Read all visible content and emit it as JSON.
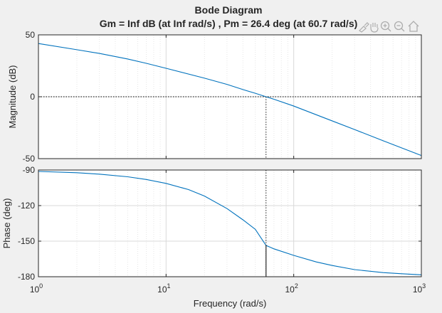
{
  "chart_data": {
    "type": "line",
    "title": "Bode Diagram",
    "subtitle": "Gm = Inf dB (at Inf rad/s) ,  Pm = 26.4 deg (at 60.7 rad/s)",
    "xlabel": "Frequency  (rad/s)",
    "xscale": "log",
    "xlim": [
      1,
      1000
    ],
    "x_ticks": [
      {
        "base": "10",
        "exp": "0"
      },
      {
        "base": "10",
        "exp": "1"
      },
      {
        "base": "10",
        "exp": "2"
      },
      {
        "base": "10",
        "exp": "3"
      }
    ],
    "grid": true,
    "colors": {
      "series": "#0072bd",
      "reference": "#000000",
      "marker": "#262626"
    },
    "panels": [
      {
        "name": "magnitude",
        "ylabel": "Magnitude (dB)",
        "ylim": [
          -50,
          50
        ],
        "yticks": [
          -50,
          0,
          50
        ],
        "reference_line": 0,
        "x": [
          1,
          2,
          3,
          5,
          7,
          10,
          20,
          30,
          40,
          50,
          60.7,
          70,
          100,
          200,
          300,
          500,
          700,
          1000
        ],
        "y": [
          43,
          38,
          35,
          30.5,
          27,
          23,
          15,
          10,
          5.8,
          2.8,
          0,
          -2,
          -7.5,
          -19.5,
          -26.5,
          -35.5,
          -41.3,
          -47.5
        ]
      },
      {
        "name": "phase",
        "ylabel": "Phase (deg)",
        "ylim": [
          -180,
          -90
        ],
        "yticks": [
          -180,
          -150,
          -120,
          -90
        ],
        "reference_line": -180,
        "x": [
          1,
          2,
          3,
          5,
          7,
          10,
          15,
          20,
          30,
          40,
          50,
          60.7,
          70,
          100,
          150,
          200,
          300,
          500,
          700,
          1000
        ],
        "y": [
          -91.2,
          -92.3,
          -93.5,
          -95.7,
          -98,
          -101.3,
          -106.5,
          -112,
          -122.5,
          -132,
          -140,
          -153.6,
          -156.5,
          -162,
          -167.5,
          -170.5,
          -174,
          -176.5,
          -177.5,
          -178.4
        ]
      }
    ],
    "phase_margin_marker": {
      "frequency": 60.7,
      "phase": -153.6
    }
  }
}
